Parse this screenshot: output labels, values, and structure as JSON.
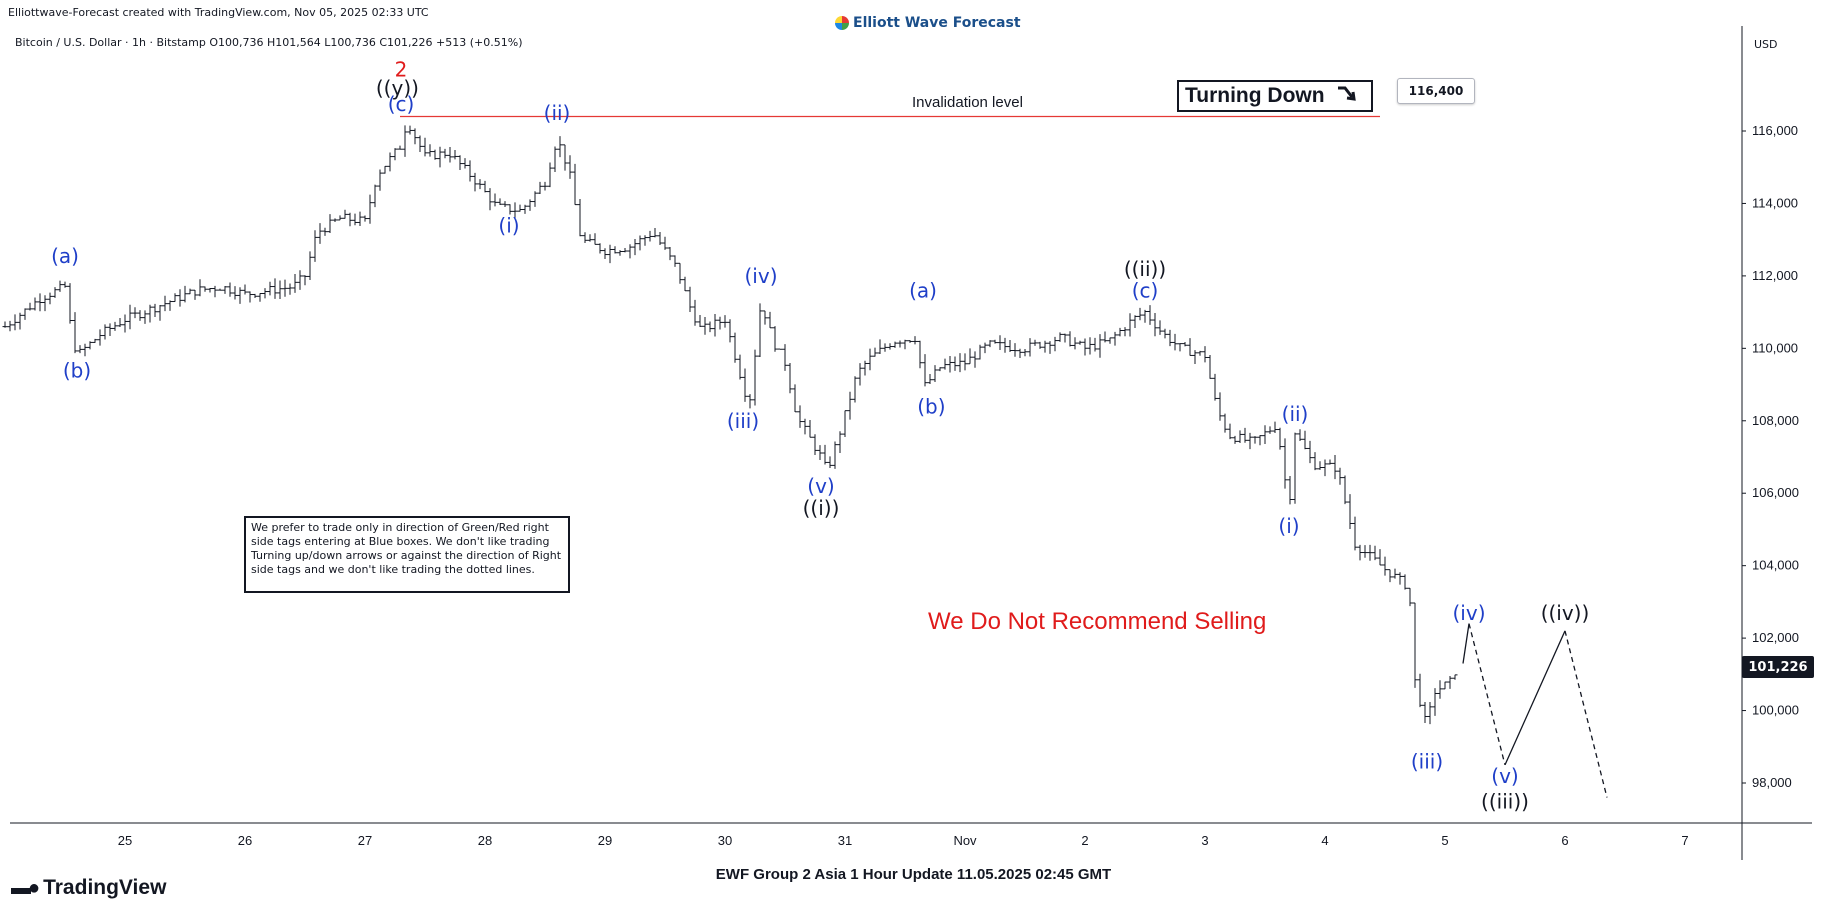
{
  "header": {
    "credit": "Elliottwave-Forecast created with TradingView.com, Nov 05, 2025 02:33 UTC",
    "brand": "Elliott Wave Forecast",
    "symbol_line": "Bitcoin / U.S. Dollar · 1h · Bitstamp  O100,736  H101,564  L100,736  C101,226  +513 (+0.51%)"
  },
  "price_axis": {
    "currency": "USD",
    "last_price_label": "101,226",
    "last_price_value": 101226
  },
  "annotations": {
    "invalidation_label": "Invalidation level",
    "invalidation_value": 116400,
    "invalidation_tag": "116,400",
    "turning_label": "Turning Down",
    "turning_arrow": "arrow-down-right-icon",
    "warning": "We Do Not Recommend Selling",
    "disclaimer": "We prefer to trade only in direction of Green/Red right side tags entering at Blue boxes. We don't like trading Turning up/down arrows or against the direction of Right side tags and we don't like trading the dotted lines."
  },
  "footer": {
    "title": "EWF Group 2 Asia 1 Hour Update 11.05.2025 02:45 GMT",
    "tradingview": "TradingView"
  },
  "colors": {
    "wave_blue": "#1f3fc8",
    "wave_black": "#131722",
    "wave_red": "#e01b1b",
    "invalidation_line": "#e53935",
    "warning_text": "#e01b1b"
  },
  "chart_data": {
    "type": "ohlc",
    "interval": "1h",
    "ylim": [
      97000,
      118000
    ],
    "y_ticks": [
      {
        "v": 98000,
        "label": "98,000"
      },
      {
        "v": 100000,
        "label": "100,000"
      },
      {
        "v": 102000,
        "label": "102,000"
      },
      {
        "v": 104000,
        "label": "104,000"
      },
      {
        "v": 106000,
        "label": "106,000"
      },
      {
        "v": 108000,
        "label": "108,000"
      },
      {
        "v": 110000,
        "label": "110,000"
      },
      {
        "v": 112000,
        "label": "112,000"
      },
      {
        "v": 114000,
        "label": "114,000"
      },
      {
        "v": 116000,
        "label": "116,000"
      }
    ],
    "xlim": [
      24.0,
      7.5
    ],
    "x_ticks": [
      {
        "t": 25,
        "label": "25"
      },
      {
        "t": 26,
        "label": "26"
      },
      {
        "t": 27,
        "label": "27"
      },
      {
        "t": 28,
        "label": "28"
      },
      {
        "t": 29,
        "label": "29"
      },
      {
        "t": 30,
        "label": "30"
      },
      {
        "t": 31,
        "label": "31"
      },
      {
        "t": 32,
        "label": "Nov"
      },
      {
        "t": 33,
        "label": "2"
      },
      {
        "t": 34,
        "label": "3"
      },
      {
        "t": 35,
        "label": "4"
      },
      {
        "t": 36,
        "label": "5"
      },
      {
        "t": 37,
        "label": "6"
      },
      {
        "t": 38,
        "label": "7"
      }
    ],
    "price_path": [
      [
        24.0,
        110600
      ],
      [
        24.3,
        111400
      ],
      [
        24.5,
        111700
      ],
      [
        24.55,
        110500
      ],
      [
        24.6,
        109800
      ],
      [
        24.8,
        110400
      ],
      [
        25.0,
        110800
      ],
      [
        25.3,
        111200
      ],
      [
        25.6,
        111600
      ],
      [
        25.8,
        111700
      ],
      [
        26.0,
        111500
      ],
      [
        26.2,
        111600
      ],
      [
        26.4,
        111700
      ],
      [
        26.5,
        112000
      ],
      [
        26.6,
        113200
      ],
      [
        26.8,
        113600
      ],
      [
        27.0,
        113500
      ],
      [
        27.1,
        114800
      ],
      [
        27.3,
        115600
      ],
      [
        27.35,
        116300
      ],
      [
        27.5,
        115300
      ],
      [
        27.7,
        115400
      ],
      [
        27.9,
        114700
      ],
      [
        28.1,
        113900
      ],
      [
        28.3,
        113800
      ],
      [
        28.5,
        114600
      ],
      [
        28.6,
        115800
      ],
      [
        28.7,
        114900
      ],
      [
        28.8,
        113000
      ],
      [
        29.0,
        112700
      ],
      [
        29.2,
        112800
      ],
      [
        29.4,
        113200
      ],
      [
        29.6,
        112200
      ],
      [
        29.7,
        111200
      ],
      [
        29.8,
        110500
      ],
      [
        30.0,
        110800
      ],
      [
        30.2,
        108400
      ],
      [
        30.3,
        111300
      ],
      [
        30.4,
        110200
      ],
      [
        30.5,
        109600
      ],
      [
        30.6,
        108100
      ],
      [
        30.8,
        107000
      ],
      [
        30.85,
        106600
      ],
      [
        30.95,
        107600
      ],
      [
        31.1,
        109300
      ],
      [
        31.2,
        109700
      ],
      [
        31.4,
        110200
      ],
      [
        31.6,
        110300
      ],
      [
        31.65,
        108900
      ],
      [
        31.8,
        109500
      ],
      [
        32.0,
        109600
      ],
      [
        32.2,
        110100
      ],
      [
        32.5,
        110000
      ],
      [
        32.8,
        110300
      ],
      [
        33.0,
        110000
      ],
      [
        33.2,
        110200
      ],
      [
        33.4,
        110800
      ],
      [
        33.5,
        111000
      ],
      [
        33.65,
        110400
      ],
      [
        33.8,
        110000
      ],
      [
        34.0,
        109800
      ],
      [
        34.1,
        108300
      ],
      [
        34.2,
        107600
      ],
      [
        34.4,
        107400
      ],
      [
        34.6,
        107900
      ],
      [
        34.7,
        105600
      ],
      [
        34.75,
        107700
      ],
      [
        34.9,
        106800
      ],
      [
        35.1,
        106700
      ],
      [
        35.25,
        104600
      ],
      [
        35.5,
        103900
      ],
      [
        35.7,
        103400
      ],
      [
        35.75,
        100800
      ],
      [
        35.85,
        99500
      ],
      [
        35.9,
        100500
      ],
      [
        36.05,
        100800
      ],
      [
        36.1,
        101226
      ]
    ],
    "projection": [
      {
        "from": [
          36.15,
          101300
        ],
        "to": [
          36.2,
          102400
        ],
        "style": "solid"
      },
      {
        "from": [
          36.2,
          102400
        ],
        "to": [
          36.5,
          98500
        ],
        "style": "dashed"
      },
      {
        "from": [
          36.5,
          98500
        ],
        "to": [
          37.0,
          102200
        ],
        "style": "solid"
      },
      {
        "from": [
          37.0,
          102200
        ],
        "to": [
          37.35,
          97600
        ],
        "style": "dashed"
      }
    ],
    "wave_labels": [
      {
        "text": "(a)",
        "t": 24.5,
        "y": 112350,
        "color": "blue"
      },
      {
        "text": "(b)",
        "t": 24.6,
        "y": 109200,
        "color": "blue"
      },
      {
        "text": "2",
        "t": 27.3,
        "y": 117500,
        "color": "red"
      },
      {
        "text": "((y))",
        "t": 27.27,
        "y": 117000,
        "color": "black"
      },
      {
        "text": "(c)",
        "t": 27.3,
        "y": 116550,
        "color": "blue"
      },
      {
        "text": "(ii)",
        "t": 28.6,
        "y": 116300,
        "color": "blue"
      },
      {
        "text": "(i)",
        "t": 28.2,
        "y": 113200,
        "color": "blue"
      },
      {
        "text": "(iv)",
        "t": 30.3,
        "y": 111800,
        "color": "blue"
      },
      {
        "text": "(iii)",
        "t": 30.15,
        "y": 107800,
        "color": "blue"
      },
      {
        "text": "(v)",
        "t": 30.8,
        "y": 106000,
        "color": "blue"
      },
      {
        "text": "((i))",
        "t": 30.8,
        "y": 105400,
        "color": "black"
      },
      {
        "text": "(a)",
        "t": 31.65,
        "y": 111400,
        "color": "blue"
      },
      {
        "text": "(b)",
        "t": 31.72,
        "y": 108200,
        "color": "blue"
      },
      {
        "text": "((ii))",
        "t": 33.5,
        "y": 112000,
        "color": "black"
      },
      {
        "text": "(c)",
        "t": 33.5,
        "y": 111400,
        "color": "blue"
      },
      {
        "text": "(ii)",
        "t": 34.75,
        "y": 108000,
        "color": "blue"
      },
      {
        "text": "(i)",
        "t": 34.7,
        "y": 104900,
        "color": "blue"
      },
      {
        "text": "(iv)",
        "t": 36.2,
        "y": 102500,
        "color": "blue"
      },
      {
        "text": "((iv))",
        "t": 37.0,
        "y": 102500,
        "color": "black"
      },
      {
        "text": "(iii)",
        "t": 35.85,
        "y": 98400,
        "color": "blue"
      },
      {
        "text": "(v)",
        "t": 36.5,
        "y": 98000,
        "color": "blue"
      },
      {
        "text": "((iii))",
        "t": 36.5,
        "y": 97300,
        "color": "black"
      }
    ]
  }
}
